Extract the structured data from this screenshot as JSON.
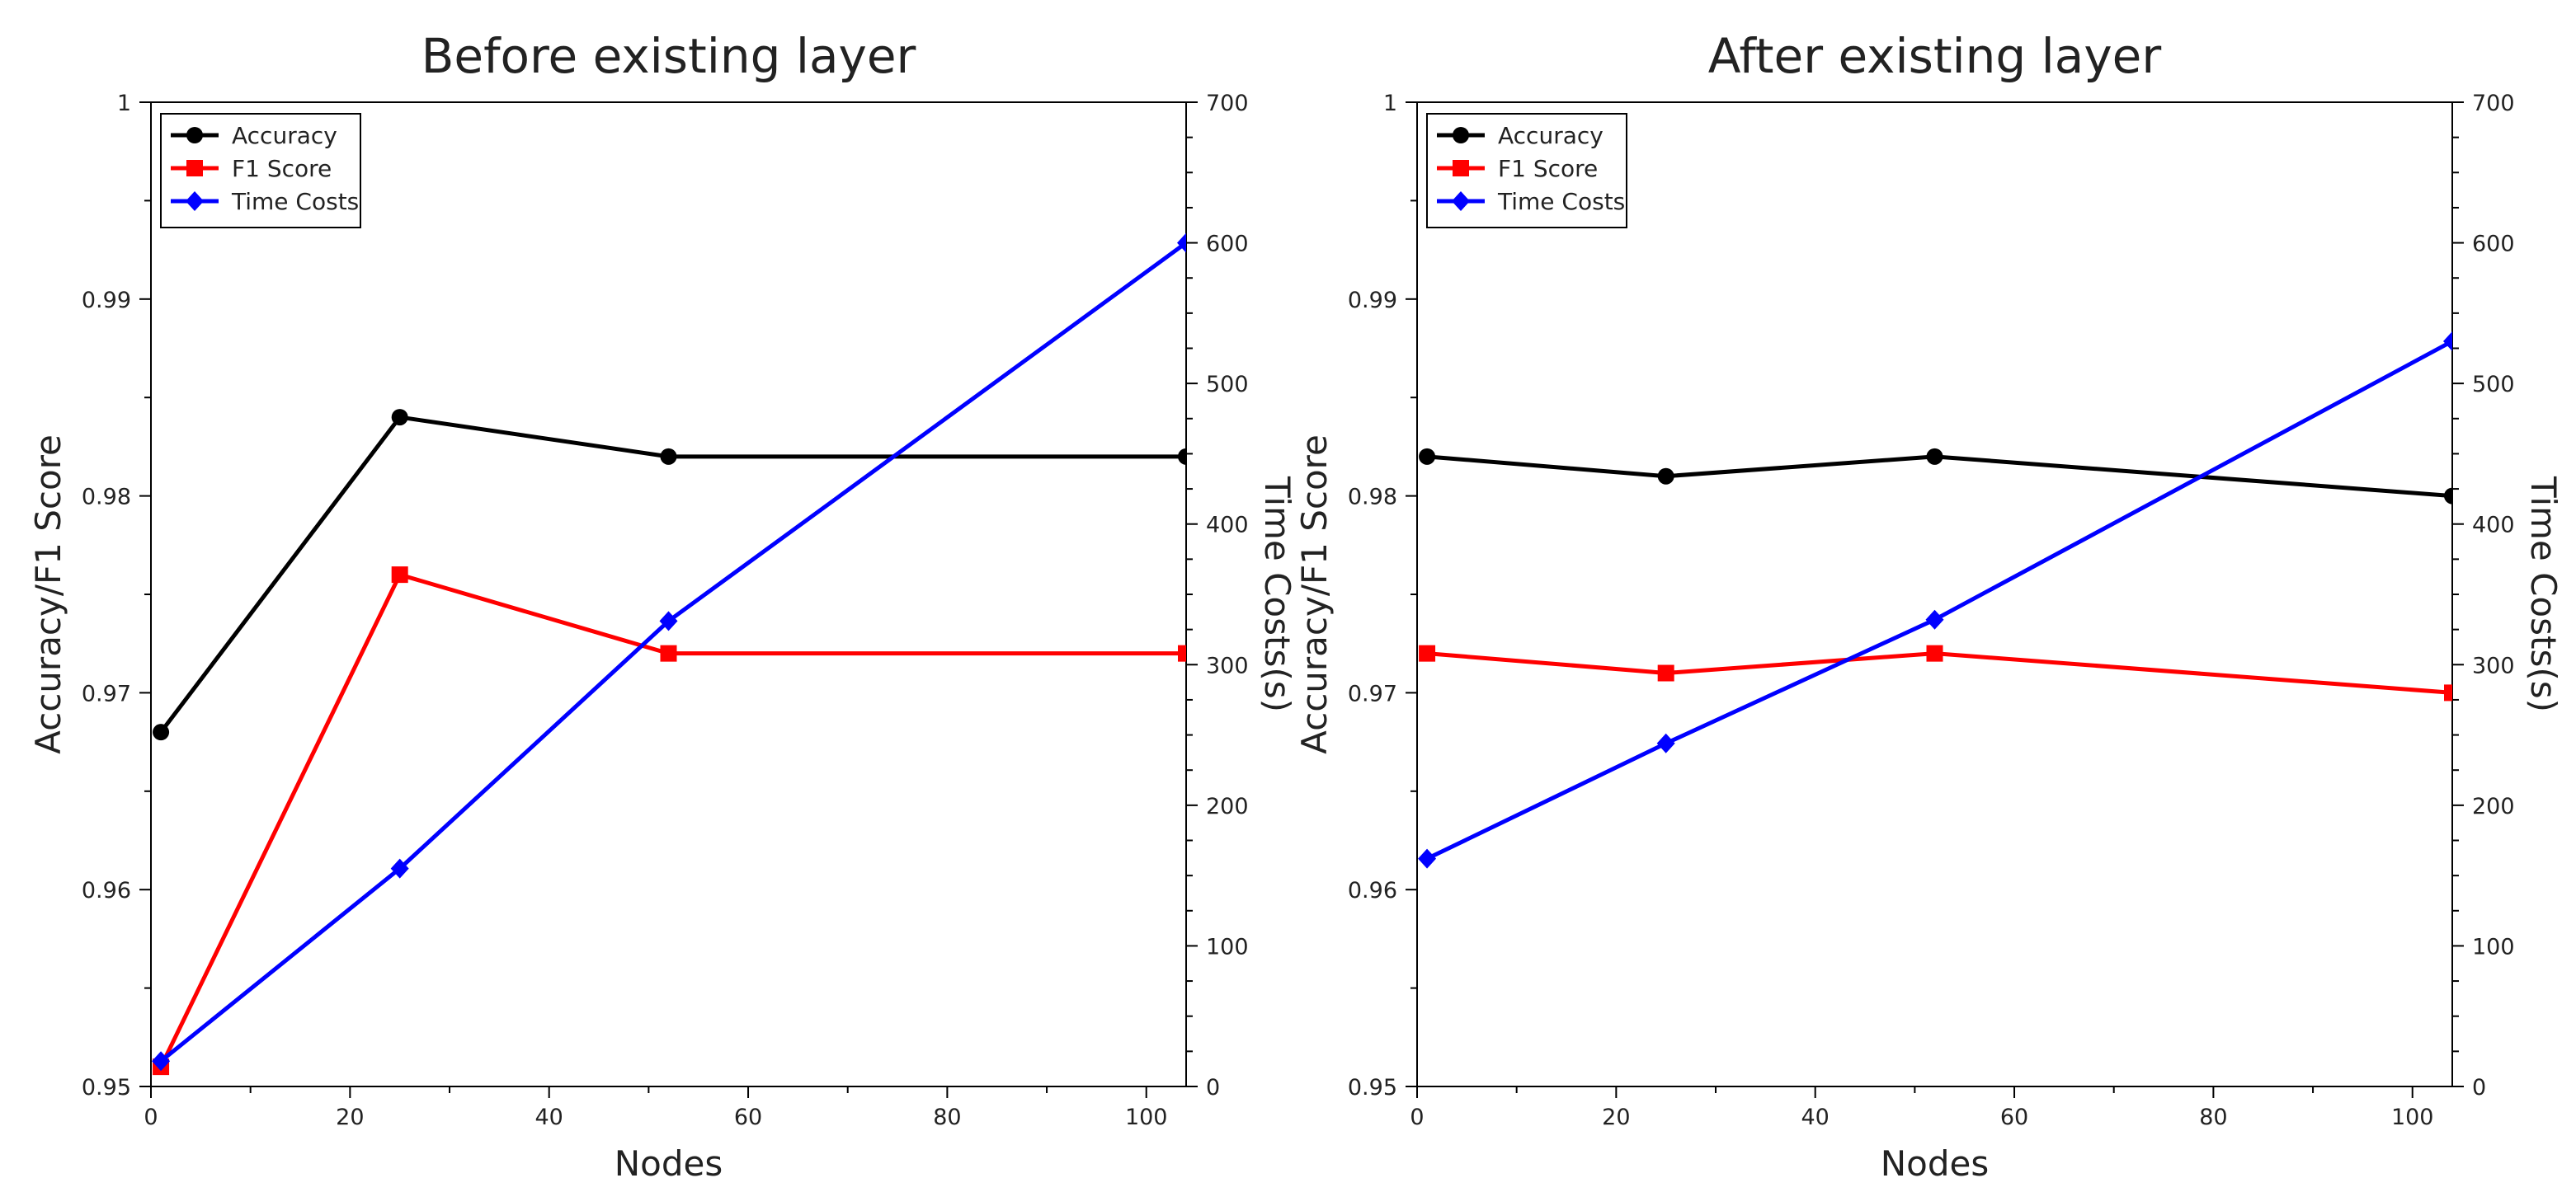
{
  "chart_data": [
    {
      "type": "line",
      "title": "Before existing layer",
      "xlabel": "Nodes",
      "ylabel": "Accuracy/F1 Score",
      "y2label": "Time Costs(s)",
      "xlim": [
        0,
        104
      ],
      "ylim": [
        0.95,
        1.0
      ],
      "y2lim": [
        0,
        700
      ],
      "xticks": [
        0,
        20,
        40,
        60,
        80,
        100
      ],
      "xtick_labels": [
        "0",
        "20",
        "40",
        "60",
        "80",
        "100"
      ],
      "yticks": [
        0.95,
        0.96,
        0.97,
        0.98,
        0.99,
        1.0
      ],
      "ytick_labels": [
        "0.95",
        "0.96",
        "0.97",
        "0.98",
        "0.99",
        "1"
      ],
      "y2ticks": [
        0,
        100,
        200,
        300,
        400,
        500,
        600,
        700
      ],
      "y2tick_labels": [
        "0",
        "100",
        "200",
        "300",
        "400",
        "500",
        "600",
        "700"
      ],
      "legend_position": "top-left",
      "series": [
        {
          "name": "Accuracy",
          "axis": "left",
          "color": "#000000",
          "marker": "circle",
          "x": [
            1,
            25,
            52,
            104
          ],
          "values": [
            0.968,
            0.984,
            0.982,
            0.982
          ]
        },
        {
          "name": "F1 Score",
          "axis": "left",
          "color": "#ff0000",
          "marker": "square",
          "x": [
            1,
            25,
            52,
            104
          ],
          "values": [
            0.951,
            0.976,
            0.972,
            0.972
          ]
        },
        {
          "name": "Time Costs",
          "axis": "right",
          "color": "#0000ff",
          "marker": "diamond",
          "x": [
            1,
            25,
            52,
            104
          ],
          "values": [
            18,
            155,
            331,
            600
          ]
        }
      ]
    },
    {
      "type": "line",
      "title": "After existing layer",
      "xlabel": "Nodes",
      "ylabel": "Accuracy/F1 Score",
      "y2label": "Time Costs(s)",
      "xlim": [
        0,
        104
      ],
      "ylim": [
        0.95,
        1.0
      ],
      "y2lim": [
        0,
        700
      ],
      "xticks": [
        0,
        20,
        40,
        60,
        80,
        100
      ],
      "xtick_labels": [
        "0",
        "20",
        "40",
        "60",
        "80",
        "100"
      ],
      "yticks": [
        0.95,
        0.96,
        0.97,
        0.98,
        0.99,
        1.0
      ],
      "ytick_labels": [
        "0.95",
        "0.96",
        "0.97",
        "0.98",
        "0.99",
        "1"
      ],
      "y2ticks": [
        0,
        100,
        200,
        300,
        400,
        500,
        600,
        700
      ],
      "y2tick_labels": [
        "0",
        "100",
        "200",
        "300",
        "400",
        "500",
        "600",
        "700"
      ],
      "legend_position": "top-left",
      "series": [
        {
          "name": "Accuracy",
          "axis": "left",
          "color": "#000000",
          "marker": "circle",
          "x": [
            1,
            25,
            52,
            104
          ],
          "values": [
            0.982,
            0.981,
            0.982,
            0.98
          ]
        },
        {
          "name": "F1 Score",
          "axis": "left",
          "color": "#ff0000",
          "marker": "square",
          "x": [
            1,
            25,
            52,
            104
          ],
          "values": [
            0.972,
            0.971,
            0.972,
            0.97
          ]
        },
        {
          "name": "Time Costs",
          "axis": "right",
          "color": "#0000ff",
          "marker": "diamond",
          "x": [
            1,
            25,
            52,
            104
          ],
          "values": [
            162,
            244,
            332,
            530
          ]
        }
      ]
    }
  ]
}
